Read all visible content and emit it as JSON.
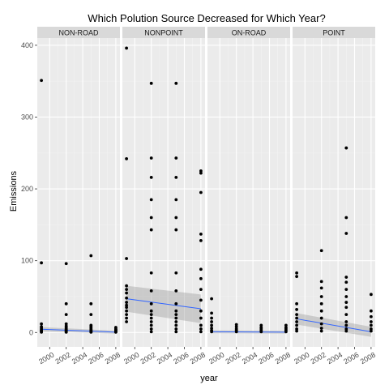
{
  "chart_data": {
    "type": "scatter",
    "title": "Which Polution Source Decreased for Which Year?",
    "xlabel": "year",
    "ylabel": "Emissions",
    "x_ticks": [
      2000,
      2002,
      2004,
      2006,
      2008
    ],
    "y_ticks": [
      0,
      100,
      200,
      300,
      400
    ],
    "xlim": [
      1998.5,
      2008.5
    ],
    "ylim": [
      -20,
      410
    ],
    "grid": true,
    "colors": {
      "panel_bg": "#ebebeb",
      "strip_bg": "#d9d9d9",
      "grid_major": "#ffffff",
      "grid_minor": "#f2f2f2",
      "point": "#000000",
      "trend": "#3366ff",
      "ribbon": "#999999"
    },
    "panels": [
      {
        "label": "NON-ROAD",
        "points": {
          "1999": [
            351,
            97,
            12,
            8,
            6,
            4,
            3,
            2,
            1,
            0.5
          ],
          "2002": [
            96,
            40,
            25,
            12,
            9,
            7,
            5,
            4,
            3,
            2,
            1,
            0.5
          ],
          "2005": [
            107,
            40,
            25,
            10,
            8,
            6,
            4,
            3,
            2,
            1,
            0.5
          ],
          "2008": [
            7,
            5,
            4,
            3,
            2,
            1,
            0.5
          ]
        },
        "trend": {
          "y_start": 4.5,
          "y_end": 0.5,
          "band_start": 3,
          "band_end": 2
        }
      },
      {
        "label": "NONPOINT",
        "points": {
          "1999": [
            396,
            242,
            103,
            65,
            60,
            55,
            48,
            42,
            38,
            35,
            30,
            25,
            20,
            15
          ],
          "2002": [
            347,
            243,
            216,
            185,
            160,
            143,
            83,
            58,
            40,
            30,
            25,
            20,
            15,
            10,
            5,
            1
          ],
          "2005": [
            347,
            243,
            216,
            185,
            160,
            143,
            83,
            58,
            40,
            30,
            25,
            20,
            15,
            10,
            5,
            1
          ],
          "2008": [
            225,
            222,
            195,
            137,
            128,
            88,
            75,
            60,
            45,
            30,
            20,
            10,
            5,
            1
          ]
        },
        "trend": {
          "y_start": 47,
          "y_end": 33,
          "band_start": 18,
          "band_end": 20
        }
      },
      {
        "label": "ON-ROAD",
        "points": {
          "1999": [
            47,
            27,
            20,
            15,
            10,
            6,
            3,
            1
          ],
          "2002": [
            11,
            8,
            5,
            3,
            1
          ],
          "2005": [
            10,
            7,
            5,
            3,
            1
          ],
          "2008": [
            10,
            7,
            5,
            3,
            1
          ]
        },
        "trend": {
          "y_start": 1,
          "y_end": 0.5,
          "band_start": 2,
          "band_end": 2
        }
      },
      {
        "label": "POINT",
        "points": {
          "1999": [
            83,
            78,
            40,
            32,
            25,
            20,
            15,
            10,
            5,
            2
          ],
          "2002": [
            114,
            71,
            62,
            50,
            40,
            30,
            20,
            12,
            6,
            2
          ],
          "2005": [
            257,
            160,
            138,
            77,
            70,
            60,
            50,
            42,
            35,
            25,
            15,
            10,
            5,
            2
          ],
          "2008": [
            53,
            30,
            22,
            15,
            10,
            5,
            2
          ]
        },
        "trend": {
          "y_start": 19,
          "y_end": 1,
          "band_start": 8,
          "band_end": 7
        }
      }
    ]
  }
}
